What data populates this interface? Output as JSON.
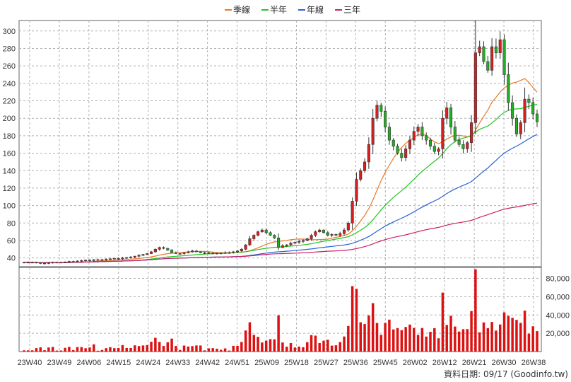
{
  "chart_data": {
    "type": "candlestick",
    "legend": [
      {
        "name": "季線",
        "color": "#e8782a"
      },
      {
        "name": "半年",
        "color": "#22c422"
      },
      {
        "name": "年線",
        "color": "#2a62d6"
      },
      {
        "name": "三年",
        "color": "#cc1f66"
      }
    ],
    "x_tick_labels": [
      "23W40",
      "23W49",
      "24W06",
      "24W15",
      "24W24",
      "24W33",
      "24W42",
      "24W51",
      "25W09",
      "25W18",
      "25W27",
      "25W36",
      "25W45",
      "26W02",
      "26W12",
      "26W21",
      "26W30",
      "26W38"
    ],
    "price_axis": {
      "ticks": [
        40,
        60,
        80,
        100,
        120,
        140,
        160,
        180,
        200,
        220,
        240,
        260,
        280,
        300
      ],
      "range": [
        30,
        312
      ]
    },
    "volume_axis": {
      "ticks": [
        "20,000",
        "40,000",
        "60,000",
        "80,000"
      ],
      "tick_values": [
        20000,
        40000,
        60000,
        80000
      ],
      "range": [
        0,
        92000
      ]
    },
    "footer": "資料日期: 09/17  (Goodinfo.tw)",
    "colors": {
      "up": "#d61f1f",
      "down": "#22b022",
      "grid": "#b0b0b0",
      "volume": "#dd1111"
    },
    "weekly_close": [
      35,
      35,
      35,
      34.5,
      34,
      34,
      34.5,
      35,
      35,
      35,
      35.5,
      36,
      36,
      36.5,
      37,
      37.5,
      37,
      38,
      38,
      38,
      38.5,
      39,
      39.5,
      39,
      40,
      40.5,
      41,
      42,
      43,
      44,
      45,
      47,
      50,
      52,
      51,
      49,
      46,
      45,
      45,
      46,
      47,
      48,
      47,
      46,
      46,
      45.5,
      45,
      45.5,
      45.5,
      46,
      46,
      47,
      48,
      50,
      55,
      62,
      66,
      70,
      72,
      69,
      66,
      63,
      52,
      54,
      55,
      57,
      58,
      59,
      60,
      62,
      66,
      70,
      72,
      69,
      66,
      67,
      66,
      68,
      72,
      80,
      105,
      130,
      140,
      150,
      170,
      200,
      215,
      208,
      190,
      175,
      168,
      160,
      155,
      165,
      175,
      185,
      190,
      180,
      175,
      168,
      162,
      165,
      200,
      212,
      190,
      175,
      170,
      165,
      172,
      195,
      275,
      282,
      265,
      255,
      282,
      275,
      290,
      250,
      218,
      200,
      182,
      195,
      222,
      218,
      205,
      196
    ]
  }
}
